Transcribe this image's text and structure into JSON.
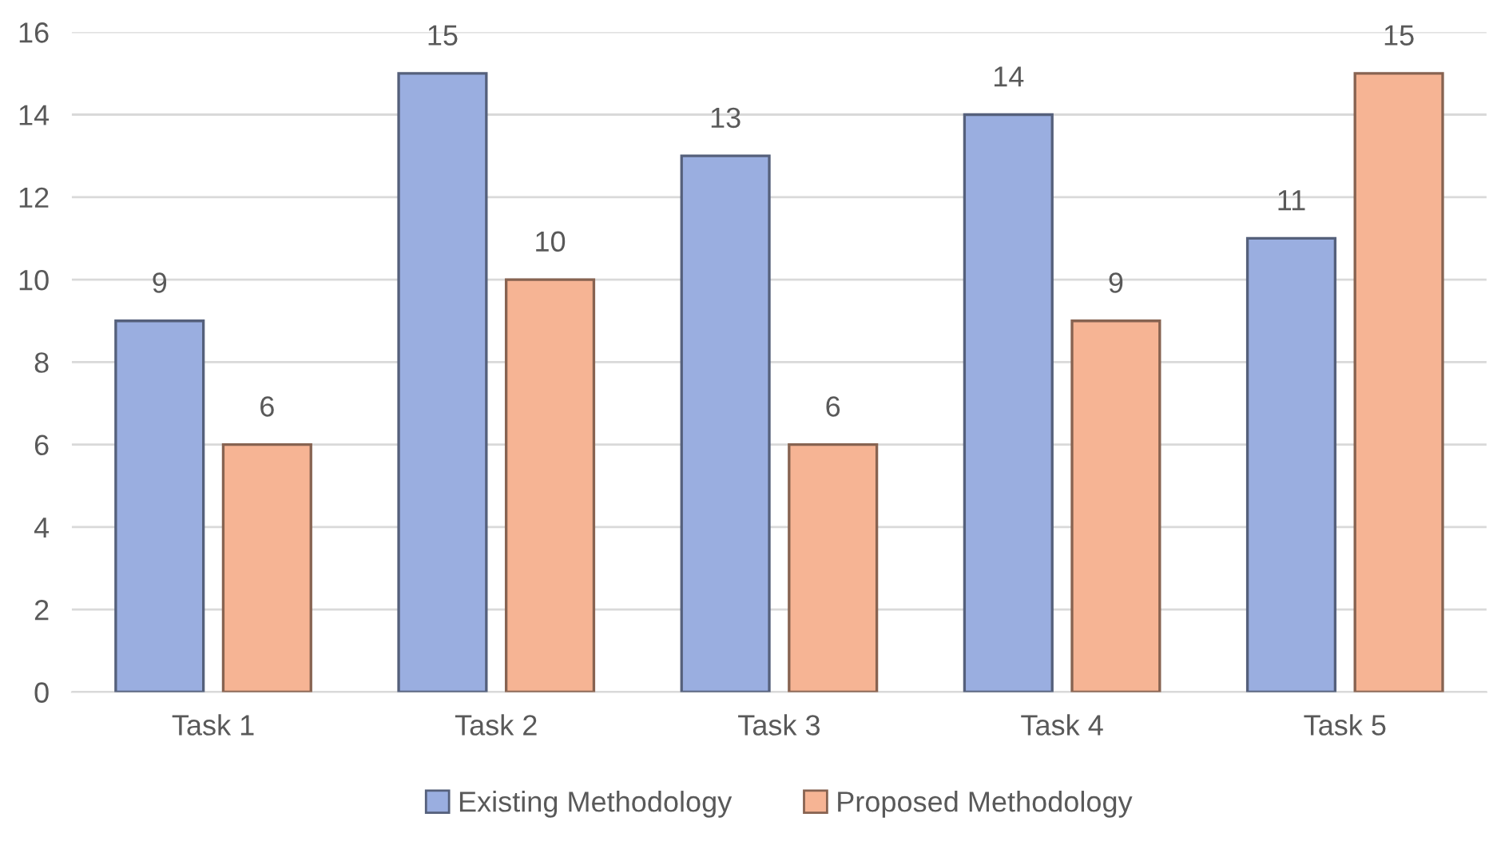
{
  "chart_data": {
    "type": "bar",
    "categories": [
      "Task 1",
      "Task 2",
      "Task 3",
      "Task 4",
      "Task 5"
    ],
    "series": [
      {
        "name": "Existing Methodology",
        "color": "#9aaee0",
        "values": [
          9,
          15,
          13,
          14,
          11
        ]
      },
      {
        "name": "Proposed Methodology",
        "color": "#f6b494",
        "values": [
          6,
          10,
          6,
          9,
          15
        ]
      }
    ],
    "ylim": [
      0,
      16
    ],
    "yticks": [
      0,
      2,
      4,
      6,
      8,
      10,
      12,
      14,
      16
    ],
    "grid": "y",
    "legend": "bottom",
    "data_labels": true
  }
}
